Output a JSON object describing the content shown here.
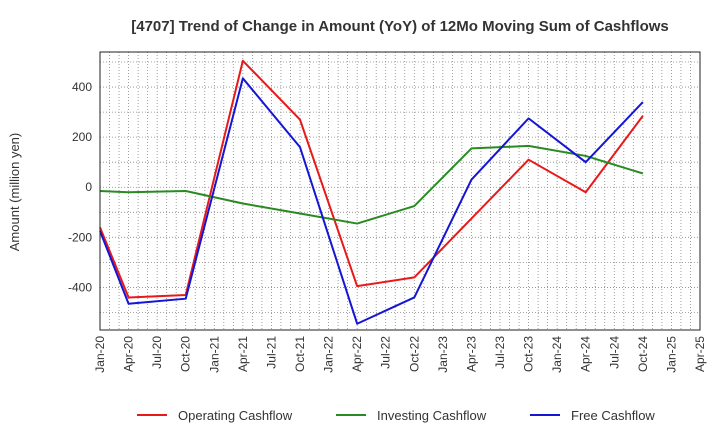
{
  "chart_data": {
    "type": "line",
    "title": "[4707]  Trend of Change in Amount (YoY) of 12Mo Moving Sum of Cashflows",
    "xlabel": "",
    "ylabel": "Amount (million yen)",
    "ylim": [
      -570,
      540
    ],
    "yticks": [
      -400,
      -200,
      0,
      200,
      400
    ],
    "grid": true,
    "legend_position": "bottom",
    "categories": [
      "Jan-20",
      "Apr-20",
      "Jul-20",
      "Oct-20",
      "Jan-21",
      "Apr-21",
      "Jul-21",
      "Oct-21",
      "Jan-22",
      "Apr-22",
      "Jul-22",
      "Oct-22",
      "Jan-23",
      "Apr-23",
      "Jul-23",
      "Oct-23",
      "Jan-24",
      "Apr-24",
      "Jul-24",
      "Oct-24",
      "Jan-25",
      "Apr-25"
    ],
    "series": [
      {
        "name": "Operating Cashflow",
        "color": "#e8191a",
        "values": [
          -160,
          -440,
          null,
          -430,
          null,
          505,
          null,
          270,
          null,
          -395,
          null,
          -360,
          null,
          -125,
          null,
          110,
          null,
          -20,
          null,
          285,
          null,
          null
        ]
      },
      {
        "name": "Investing Cashflow",
        "color": "#2a8a22",
        "values": [
          -15,
          -20,
          null,
          -15,
          null,
          -65,
          null,
          -105,
          null,
          -145,
          null,
          -75,
          null,
          155,
          null,
          165,
          null,
          125,
          null,
          55,
          null,
          null
        ]
      },
      {
        "name": "Free Cashflow",
        "color": "#1515d4",
        "values": [
          -175,
          -465,
          null,
          -445,
          null,
          435,
          null,
          160,
          null,
          -545,
          null,
          -440,
          null,
          30,
          null,
          275,
          null,
          100,
          null,
          340,
          null,
          null
        ]
      }
    ]
  }
}
